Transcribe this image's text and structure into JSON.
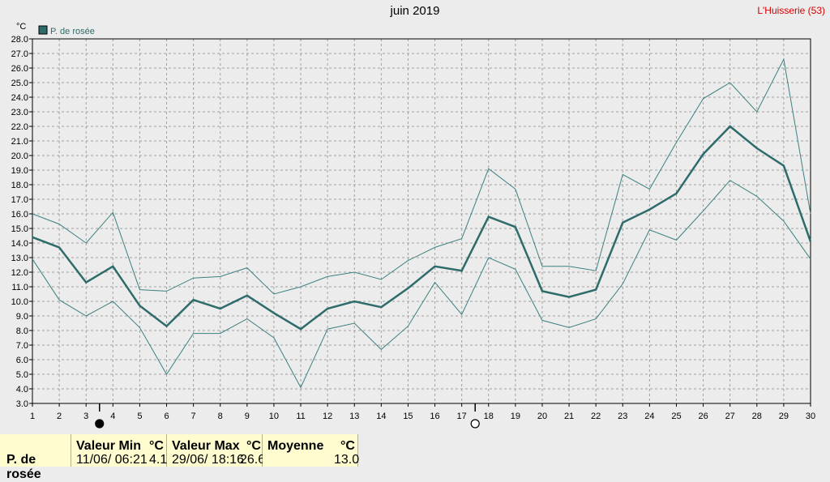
{
  "header": {
    "title": "juin 2019",
    "station": "L'Huisserie (53)",
    "unit": "°C"
  },
  "chart_data": {
    "type": "line",
    "x": [
      1,
      2,
      3,
      4,
      5,
      6,
      7,
      8,
      9,
      10,
      11,
      12,
      13,
      14,
      15,
      16,
      17,
      18,
      19,
      20,
      21,
      22,
      23,
      24,
      25,
      26,
      27,
      28,
      29,
      30
    ],
    "xlim": [
      1,
      30
    ],
    "ylim": [
      3.0,
      28.0
    ],
    "ytick_step": 1.0,
    "ylabel": "°C",
    "grid": true,
    "legend": "top-left",
    "series": [
      {
        "name": "P. de rosée",
        "role": "mean",
        "color": "#2e6b6b",
        "values": [
          14.4,
          13.7,
          11.3,
          12.4,
          9.7,
          8.3,
          10.1,
          9.5,
          10.4,
          9.2,
          8.1,
          9.5,
          10.0,
          9.6,
          10.9,
          12.4,
          12.1,
          15.8,
          15.1,
          10.7,
          10.3,
          10.8,
          15.4,
          16.3,
          17.4,
          20.1,
          22.0,
          20.5,
          19.3,
          14.1
        ]
      },
      {
        "role": "max",
        "color": "#3d8080",
        "values": [
          16.0,
          15.3,
          14.0,
          16.1,
          10.8,
          10.7,
          11.6,
          11.7,
          12.3,
          10.5,
          11.0,
          11.7,
          12.0,
          11.5,
          12.8,
          13.7,
          14.3,
          19.1,
          17.7,
          12.4,
          12.4,
          12.1,
          18.7,
          17.7,
          20.9,
          23.9,
          25.0,
          23.0,
          26.6,
          16.0
        ]
      },
      {
        "role": "min",
        "color": "#3d8080",
        "values": [
          12.9,
          10.1,
          9.0,
          10.0,
          8.2,
          5.0,
          7.8,
          7.8,
          8.8,
          7.5,
          4.1,
          8.1,
          8.5,
          6.7,
          8.3,
          11.3,
          9.1,
          13.0,
          12.2,
          8.7,
          8.2,
          8.8,
          11.2,
          14.9,
          14.2,
          16.2,
          18.3,
          17.2,
          15.5,
          12.9
        ]
      }
    ],
    "moon_phases": [
      {
        "x": 3.5,
        "phase": "new"
      },
      {
        "x": 17.5,
        "phase": "full"
      }
    ]
  },
  "colors": {
    "background": "#ececec",
    "plot_background": "#ececec",
    "grid": "#a0a0a0",
    "axis": "#000000",
    "footer_bg": "#fffdd0",
    "station": "#d40000"
  },
  "footer": {
    "series_label": "P. de rosée",
    "min": {
      "header": "Valeur Min",
      "unit": "°C",
      "datetime": "11/06/ 06:21",
      "value": "4.1"
    },
    "max": {
      "header": "Valeur Max",
      "unit": "°C",
      "datetime": "29/06/ 18:16",
      "value": "26.6"
    },
    "mean": {
      "header": "Moyenne",
      "unit": "°C",
      "value": "13.0"
    }
  }
}
